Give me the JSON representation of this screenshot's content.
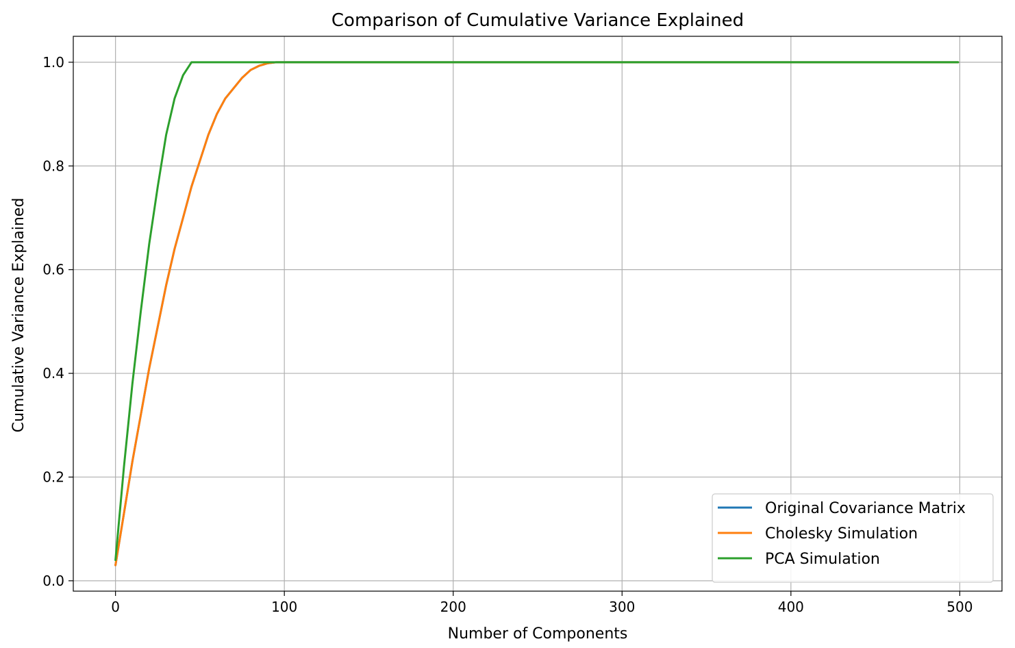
{
  "chart_data": {
    "type": "line",
    "title": "Comparison of Cumulative Variance Explained",
    "xlabel": "Number of Components",
    "ylabel": "Cumulative Variance Explained",
    "xlim": [
      -25,
      525
    ],
    "ylim": [
      -0.02,
      1.05
    ],
    "xticks": [
      0,
      100,
      200,
      300,
      400,
      500
    ],
    "xtick_labels": [
      "0",
      "100",
      "200",
      "300",
      "400",
      "500"
    ],
    "yticks": [
      0.0,
      0.2,
      0.4,
      0.6,
      0.8,
      1.0
    ],
    "ytick_labels": [
      "0.0",
      "0.2",
      "0.4",
      "0.6",
      "0.8",
      "1.0"
    ],
    "grid": true,
    "legend_position": "lower-right",
    "series": [
      {
        "name": "Original Covariance Matrix",
        "color": "#1f77b4",
        "x": [
          0,
          5,
          10,
          15,
          20,
          25,
          30,
          35,
          40,
          45,
          50,
          55,
          60,
          65,
          70,
          75,
          80,
          85,
          90,
          95,
          100,
          150,
          200,
          250,
          300,
          350,
          400,
          450,
          499
        ],
        "y": [
          0.03,
          0.13,
          0.23,
          0.32,
          0.41,
          0.49,
          0.57,
          0.64,
          0.7,
          0.76,
          0.81,
          0.86,
          0.9,
          0.93,
          0.95,
          0.97,
          0.985,
          0.993,
          0.998,
          1.0,
          1.0,
          1.0,
          1.0,
          1.0,
          1.0,
          1.0,
          1.0,
          1.0,
          1.0
        ]
      },
      {
        "name": "Cholesky Simulation",
        "color": "#ff7f0e",
        "x": [
          0,
          5,
          10,
          15,
          20,
          25,
          30,
          35,
          40,
          45,
          50,
          55,
          60,
          65,
          70,
          75,
          80,
          85,
          90,
          95,
          100,
          150,
          200,
          250,
          300,
          350,
          400,
          450,
          499
        ],
        "y": [
          0.03,
          0.13,
          0.23,
          0.32,
          0.41,
          0.49,
          0.57,
          0.64,
          0.7,
          0.76,
          0.81,
          0.86,
          0.9,
          0.93,
          0.95,
          0.97,
          0.985,
          0.993,
          0.998,
          1.0,
          1.0,
          1.0,
          1.0,
          1.0,
          1.0,
          1.0,
          1.0,
          1.0,
          1.0
        ]
      },
      {
        "name": "PCA Simulation",
        "color": "#2ca02c",
        "x": [
          0,
          5,
          10,
          15,
          20,
          25,
          30,
          35,
          40,
          45,
          50,
          100,
          150,
          200,
          250,
          300,
          350,
          400,
          450,
          499
        ],
        "y": [
          0.04,
          0.22,
          0.38,
          0.52,
          0.65,
          0.76,
          0.86,
          0.93,
          0.975,
          1.0,
          1.0,
          1.0,
          1.0,
          1.0,
          1.0,
          1.0,
          1.0,
          1.0,
          1.0,
          1.0
        ]
      }
    ]
  }
}
